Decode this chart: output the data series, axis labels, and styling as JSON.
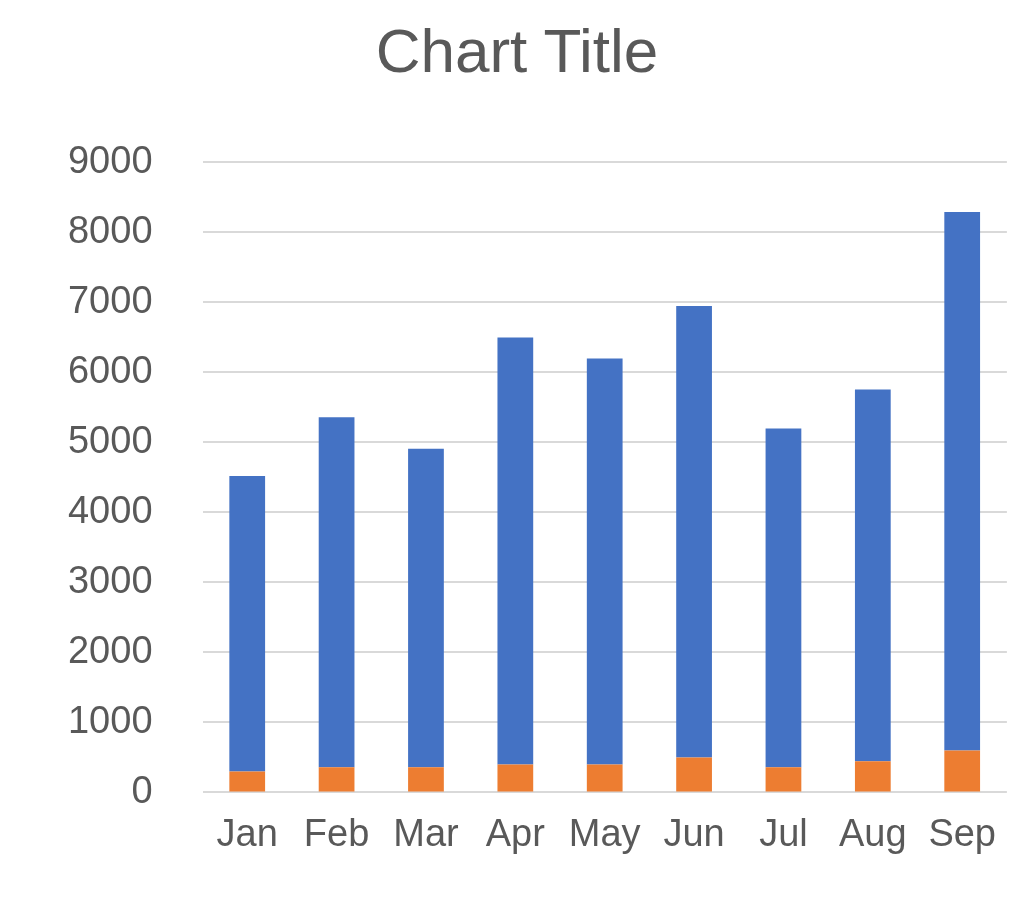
{
  "chart_data": {
    "type": "bar",
    "title": "Chart Title",
    "stacked": true,
    "categories": [
      "Jan",
      "Feb",
      "Mar",
      "Apr",
      "May",
      "Jun",
      "Jul",
      "Aug",
      "Sep"
    ],
    "series": [
      {
        "color": "#ed7d31",
        "values": [
          300,
          360,
          360,
          400,
          400,
          500,
          360,
          445,
          600
        ]
      },
      {
        "color": "#4472c4",
        "values": [
          4220,
          5000,
          4550,
          6100,
          5800,
          6450,
          4840,
          5310,
          7690
        ]
      }
    ],
    "ylim": [
      0,
      9000
    ],
    "yticks": [
      0,
      1000,
      2000,
      3000,
      4000,
      5000,
      6000,
      7000,
      8000,
      9000
    ],
    "grid": "y",
    "legend": false
  }
}
